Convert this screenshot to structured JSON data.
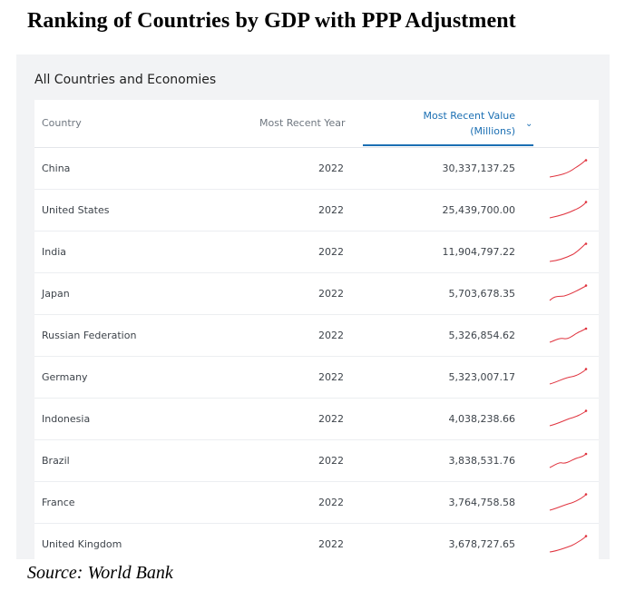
{
  "page_title": "Ranking of Countries by GDP with PPP Adjustment",
  "panel_title": "All Countries and Economies",
  "columns": {
    "country": "Country",
    "year": "Most Recent Year",
    "value_line1": "Most Recent Value",
    "value_line2": "(Millions)"
  },
  "sort_icon": "chevron-down-icon",
  "colors": {
    "accent": "#1b6fb3",
    "sparkline": "#e0343f"
  },
  "rows": [
    {
      "country": "China",
      "year": "2022",
      "value": "30,337,137.25"
    },
    {
      "country": "United States",
      "year": "2022",
      "value": "25,439,700.00"
    },
    {
      "country": "India",
      "year": "2022",
      "value": "11,904,797.22"
    },
    {
      "country": "Japan",
      "year": "2022",
      "value": "5,703,678.35"
    },
    {
      "country": "Russian Federation",
      "year": "2022",
      "value": "5,326,854.62"
    },
    {
      "country": "Germany",
      "year": "2022",
      "value": "5,323,007.17"
    },
    {
      "country": "Indonesia",
      "year": "2022",
      "value": "4,038,238.66"
    },
    {
      "country": "Brazil",
      "year": "2022",
      "value": "3,838,531.76"
    },
    {
      "country": "France",
      "year": "2022",
      "value": "3,764,758.58"
    },
    {
      "country": "United Kingdom",
      "year": "2022",
      "value": "3,678,727.65"
    }
  ],
  "source": "Source: World Bank"
}
